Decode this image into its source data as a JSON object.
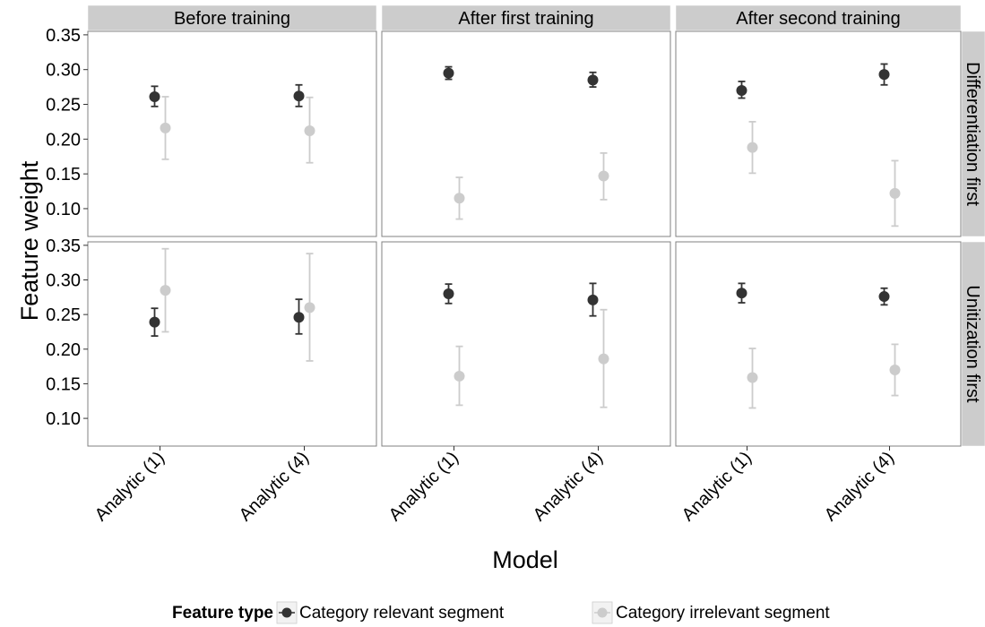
{
  "chart_data": {
    "type": "scatter",
    "xlabel": "Model",
    "ylabel": "Feature weight",
    "categories": [
      "Analytic (1)",
      "Analytic (4)"
    ],
    "yticks": [
      "0.10",
      "0.15",
      "0.20",
      "0.25",
      "0.30",
      "0.35"
    ],
    "ylim": [
      0.06,
      0.355
    ],
    "columns": [
      "Before training",
      "After first training",
      "After second training"
    ],
    "rows": [
      "Differentiation first",
      "Unitization first"
    ],
    "legend": {
      "title": "Feature type",
      "position": "bottom",
      "entries": [
        "Category relevant segment",
        "Category irrelevant segment"
      ]
    },
    "colors": {
      "relevant": "#333333",
      "irrelevant": "#cccccc"
    },
    "grid": false,
    "panels": [
      {
        "row": 0,
        "col": 0,
        "series": [
          {
            "name": "Category relevant segment",
            "values": [
              0.261,
              0.262
            ],
            "lower": [
              0.247,
              0.247
            ],
            "upper": [
              0.276,
              0.278
            ]
          },
          {
            "name": "Category irrelevant segment",
            "values": [
              0.216,
              0.212
            ],
            "lower": [
              0.171,
              0.166
            ],
            "upper": [
              0.261,
              0.26
            ]
          }
        ]
      },
      {
        "row": 0,
        "col": 1,
        "series": [
          {
            "name": "Category relevant segment",
            "values": [
              0.295,
              0.285
            ],
            "lower": [
              0.286,
              0.275
            ],
            "upper": [
              0.304,
              0.296
            ]
          },
          {
            "name": "Category irrelevant segment",
            "values": [
              0.115,
              0.147
            ],
            "lower": [
              0.085,
              0.113
            ],
            "upper": [
              0.145,
              0.18
            ]
          }
        ]
      },
      {
        "row": 0,
        "col": 2,
        "series": [
          {
            "name": "Category relevant segment",
            "values": [
              0.27,
              0.293
            ],
            "lower": [
              0.259,
              0.278
            ],
            "upper": [
              0.283,
              0.308
            ]
          },
          {
            "name": "Category irrelevant segment",
            "values": [
              0.188,
              0.122
            ],
            "lower": [
              0.151,
              0.075
            ],
            "upper": [
              0.225,
              0.169
            ]
          }
        ]
      },
      {
        "row": 1,
        "col": 0,
        "series": [
          {
            "name": "Category relevant segment",
            "values": [
              0.239,
              0.246
            ],
            "lower": [
              0.219,
              0.222
            ],
            "upper": [
              0.259,
              0.272
            ]
          },
          {
            "name": "Category irrelevant segment",
            "values": [
              0.285,
              0.26
            ],
            "lower": [
              0.225,
              0.183
            ],
            "upper": [
              0.345,
              0.338
            ]
          }
        ]
      },
      {
        "row": 1,
        "col": 1,
        "series": [
          {
            "name": "Category relevant segment",
            "values": [
              0.28,
              0.271
            ],
            "lower": [
              0.266,
              0.248
            ],
            "upper": [
              0.294,
              0.295
            ]
          },
          {
            "name": "Category irrelevant segment",
            "values": [
              0.161,
              0.186
            ],
            "lower": [
              0.119,
              0.116
            ],
            "upper": [
              0.204,
              0.257
            ]
          }
        ]
      },
      {
        "row": 1,
        "col": 2,
        "series": [
          {
            "name": "Category relevant segment",
            "values": [
              0.281,
              0.276
            ],
            "lower": [
              0.267,
              0.264
            ],
            "upper": [
              0.295,
              0.288
            ]
          },
          {
            "name": "Category irrelevant segment",
            "values": [
              0.159,
              0.17
            ],
            "lower": [
              0.115,
              0.133
            ],
            "upper": [
              0.201,
              0.207
            ]
          }
        ]
      }
    ]
  }
}
